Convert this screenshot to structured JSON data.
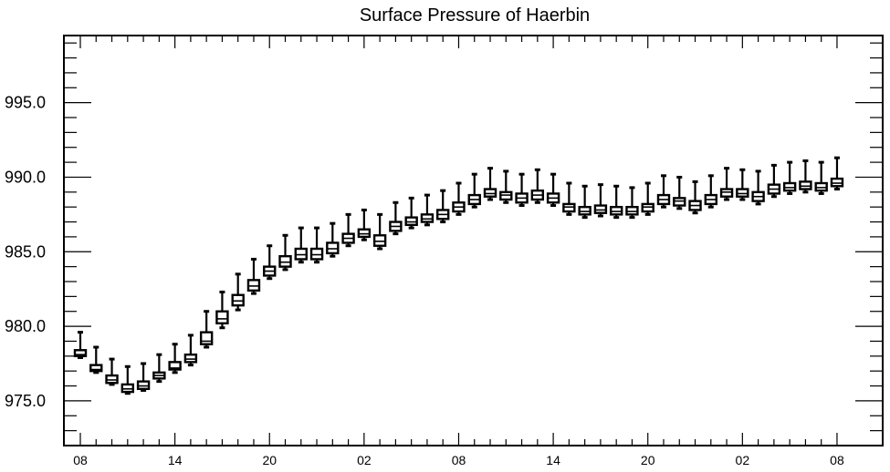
{
  "chart_data": {
    "type": "boxplot",
    "title": "Surface Pressure of Haerbin",
    "xlabel": "",
    "ylabel": "",
    "ylim": [
      972.0,
      999.5
    ],
    "y_ticks": [
      975.0,
      980.0,
      985.0,
      990.0,
      995.0
    ],
    "y_tick_labels": [
      "975.0",
      "980.0",
      "985.0",
      "990.0",
      "995.0"
    ],
    "x_tick_labels": [
      "08",
      "14",
      "20",
      "02",
      "08",
      "14",
      "20",
      "02",
      "08"
    ],
    "x_tick_positions": [
      0,
      6,
      12,
      18,
      24,
      30,
      36,
      42,
      48
    ],
    "x_step_hours": 1,
    "grid": false,
    "box_color": "#000000",
    "boxes": [
      {
        "x": 0,
        "low": 977.9,
        "q1": 978.0,
        "median": 978.1,
        "q3": 978.4,
        "high": 979.6
      },
      {
        "x": 1,
        "low": 976.9,
        "q1": 977.0,
        "median": 977.1,
        "q3": 977.4,
        "high": 978.6
      },
      {
        "x": 2,
        "low": 976.1,
        "q1": 976.2,
        "median": 976.4,
        "q3": 976.7,
        "high": 977.8
      },
      {
        "x": 3,
        "low": 975.5,
        "q1": 975.6,
        "median": 975.8,
        "q3": 976.1,
        "high": 977.3
      },
      {
        "x": 4,
        "low": 975.7,
        "q1": 975.8,
        "median": 976.0,
        "q3": 976.3,
        "high": 977.5
      },
      {
        "x": 5,
        "low": 976.3,
        "q1": 976.5,
        "median": 976.7,
        "q3": 976.9,
        "high": 978.1
      },
      {
        "x": 6,
        "low": 976.9,
        "q1": 977.1,
        "median": 977.2,
        "q3": 977.6,
        "high": 978.8
      },
      {
        "x": 7,
        "low": 977.4,
        "q1": 977.6,
        "median": 977.8,
        "q3": 978.1,
        "high": 979.4
      },
      {
        "x": 8,
        "low": 978.6,
        "q1": 978.8,
        "median": 979.0,
        "q3": 979.6,
        "high": 981.0
      },
      {
        "x": 9,
        "low": 979.9,
        "q1": 980.2,
        "median": 980.5,
        "q3": 981.0,
        "high": 982.3
      },
      {
        "x": 10,
        "low": 981.1,
        "q1": 981.4,
        "median": 981.7,
        "q3": 982.1,
        "high": 983.5
      },
      {
        "x": 11,
        "low": 982.2,
        "q1": 982.4,
        "median": 982.7,
        "q3": 983.1,
        "high": 984.5
      },
      {
        "x": 12,
        "low": 983.2,
        "q1": 983.4,
        "median": 983.7,
        "q3": 984.0,
        "high": 985.4
      },
      {
        "x": 13,
        "low": 983.8,
        "q1": 984.0,
        "median": 984.3,
        "q3": 984.7,
        "high": 986.1
      },
      {
        "x": 14,
        "low": 984.3,
        "q1": 984.5,
        "median": 984.8,
        "q3": 985.2,
        "high": 986.6
      },
      {
        "x": 15,
        "low": 984.3,
        "q1": 984.5,
        "median": 984.8,
        "q3": 985.2,
        "high": 986.6
      },
      {
        "x": 16,
        "low": 984.7,
        "q1": 984.9,
        "median": 985.2,
        "q3": 985.6,
        "high": 986.9
      },
      {
        "x": 17,
        "low": 985.4,
        "q1": 985.6,
        "median": 985.9,
        "q3": 986.2,
        "high": 987.5
      },
      {
        "x": 18,
        "low": 985.8,
        "q1": 986.0,
        "median": 986.2,
        "q3": 986.5,
        "high": 987.8
      },
      {
        "x": 19,
        "low": 985.2,
        "q1": 985.4,
        "median": 985.7,
        "q3": 986.1,
        "high": 987.5
      },
      {
        "x": 20,
        "low": 986.2,
        "q1": 986.4,
        "median": 986.7,
        "q3": 987.0,
        "high": 988.3
      },
      {
        "x": 21,
        "low": 986.6,
        "q1": 986.8,
        "median": 987.0,
        "q3": 987.3,
        "high": 988.6
      },
      {
        "x": 22,
        "low": 986.8,
        "q1": 987.0,
        "median": 987.2,
        "q3": 987.5,
        "high": 988.8
      },
      {
        "x": 23,
        "low": 987.0,
        "q1": 987.2,
        "median": 987.5,
        "q3": 987.8,
        "high": 989.1
      },
      {
        "x": 24,
        "low": 987.5,
        "q1": 987.7,
        "median": 988.0,
        "q3": 988.3,
        "high": 989.6
      },
      {
        "x": 25,
        "low": 988.0,
        "q1": 988.2,
        "median": 988.5,
        "q3": 988.8,
        "high": 990.2
      },
      {
        "x": 26,
        "low": 988.5,
        "q1": 988.7,
        "median": 988.9,
        "q3": 989.2,
        "high": 990.6
      },
      {
        "x": 27,
        "low": 988.3,
        "q1": 988.5,
        "median": 988.8,
        "q3": 989.0,
        "high": 990.4
      },
      {
        "x": 28,
        "low": 988.1,
        "q1": 988.3,
        "median": 988.6,
        "q3": 988.9,
        "high": 990.2
      },
      {
        "x": 29,
        "low": 988.3,
        "q1": 988.5,
        "median": 988.8,
        "q3": 989.1,
        "high": 990.5
      },
      {
        "x": 30,
        "low": 988.1,
        "q1": 988.3,
        "median": 988.6,
        "q3": 988.9,
        "high": 990.2
      },
      {
        "x": 31,
        "low": 987.5,
        "q1": 987.7,
        "median": 988.0,
        "q3": 988.2,
        "high": 989.6
      },
      {
        "x": 32,
        "low": 987.3,
        "q1": 987.5,
        "median": 987.7,
        "q3": 988.0,
        "high": 989.4
      },
      {
        "x": 33,
        "low": 987.4,
        "q1": 987.6,
        "median": 987.8,
        "q3": 988.1,
        "high": 989.5
      },
      {
        "x": 34,
        "low": 987.3,
        "q1": 987.5,
        "median": 987.7,
        "q3": 988.0,
        "high": 989.4
      },
      {
        "x": 35,
        "low": 987.3,
        "q1": 987.5,
        "median": 987.7,
        "q3": 988.0,
        "high": 989.3
      },
      {
        "x": 36,
        "low": 987.5,
        "q1": 987.7,
        "median": 988.0,
        "q3": 988.2,
        "high": 989.6
      },
      {
        "x": 37,
        "low": 988.0,
        "q1": 988.2,
        "median": 988.5,
        "q3": 988.8,
        "high": 990.1
      },
      {
        "x": 38,
        "low": 987.9,
        "q1": 988.1,
        "median": 988.4,
        "q3": 988.6,
        "high": 990.0
      },
      {
        "x": 39,
        "low": 987.6,
        "q1": 987.8,
        "median": 988.1,
        "q3": 988.4,
        "high": 989.7
      },
      {
        "x": 40,
        "low": 988.0,
        "q1": 988.2,
        "median": 988.5,
        "q3": 988.8,
        "high": 990.1
      },
      {
        "x": 41,
        "low": 988.5,
        "q1": 988.7,
        "median": 989.0,
        "q3": 989.2,
        "high": 990.6
      },
      {
        "x": 42,
        "low": 988.5,
        "q1": 988.7,
        "median": 988.9,
        "q3": 989.2,
        "high": 990.5
      },
      {
        "x": 43,
        "low": 988.2,
        "q1": 988.4,
        "median": 988.7,
        "q3": 989.0,
        "high": 990.4
      },
      {
        "x": 44,
        "low": 988.7,
        "q1": 988.9,
        "median": 989.2,
        "q3": 989.5,
        "high": 990.8
      },
      {
        "x": 45,
        "low": 988.9,
        "q1": 989.1,
        "median": 989.3,
        "q3": 989.6,
        "high": 991.0
      },
      {
        "x": 46,
        "low": 989.0,
        "q1": 989.2,
        "median": 989.4,
        "q3": 989.7,
        "high": 991.1
      },
      {
        "x": 47,
        "low": 988.9,
        "q1": 989.1,
        "median": 989.3,
        "q3": 989.6,
        "high": 991.0
      },
      {
        "x": 48,
        "low": 989.2,
        "q1": 989.4,
        "median": 989.6,
        "q3": 989.9,
        "high": 991.3
      }
    ]
  }
}
